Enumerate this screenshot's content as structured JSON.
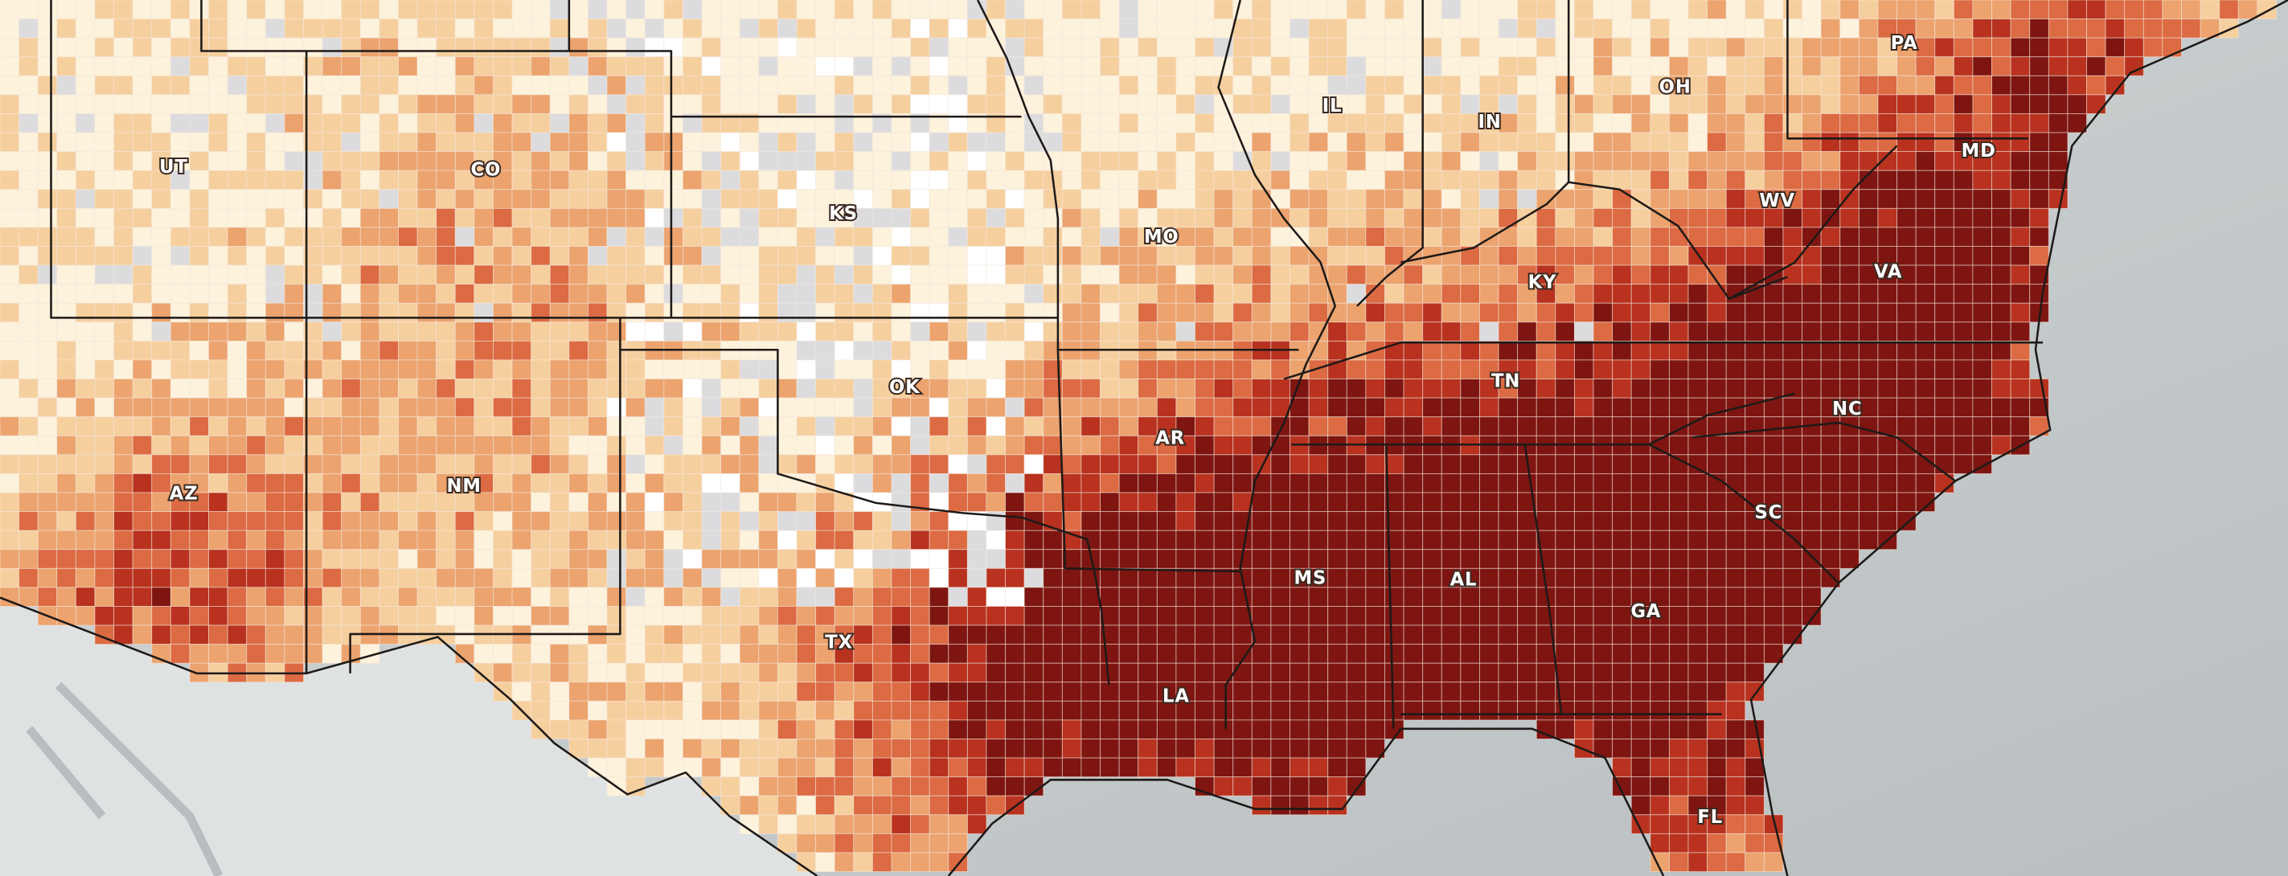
{
  "map": {
    "state_labels": [
      "PA",
      "OH",
      "IN",
      "IL",
      "UT",
      "CO",
      "KS",
      "MO",
      "WV",
      "MD",
      "KY",
      "VA",
      "OK",
      "TN",
      "NC",
      "AR",
      "AZ",
      "NM",
      "SC",
      "MS",
      "AL",
      "GA",
      "TX",
      "LA",
      "FL"
    ]
  }
}
